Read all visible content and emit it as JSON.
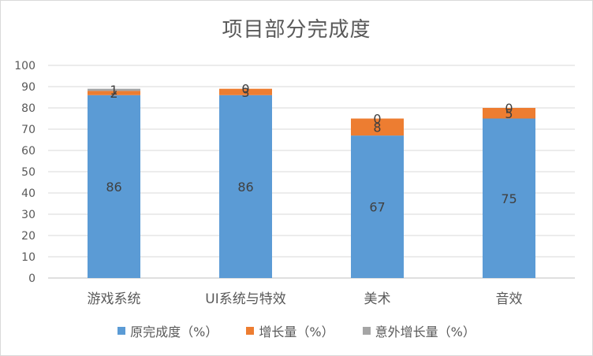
{
  "chart_data": {
    "type": "bar",
    "stacked": true,
    "title": "项目部分完成度",
    "categories": [
      "游戏系统",
      "UI系统与特效",
      "美术",
      "音效"
    ],
    "series": [
      {
        "name": "原完成度（%）",
        "values": [
          86,
          86,
          67,
          75
        ],
        "color": "#5b9bd5"
      },
      {
        "name": "增长量（%）",
        "values": [
          2,
          3,
          8,
          5
        ],
        "color": "#ed7d31"
      },
      {
        "name": "意外增长量（%）",
        "values": [
          1,
          0,
          0,
          0
        ],
        "color": "#a5a5a5"
      }
    ],
    "ylim": [
      0,
      100
    ],
    "y_ticks": [
      "0",
      "10",
      "20",
      "30",
      "40",
      "50",
      "60",
      "70",
      "80",
      "90",
      "100"
    ],
    "grid": true,
    "legend_position": "bottom"
  }
}
